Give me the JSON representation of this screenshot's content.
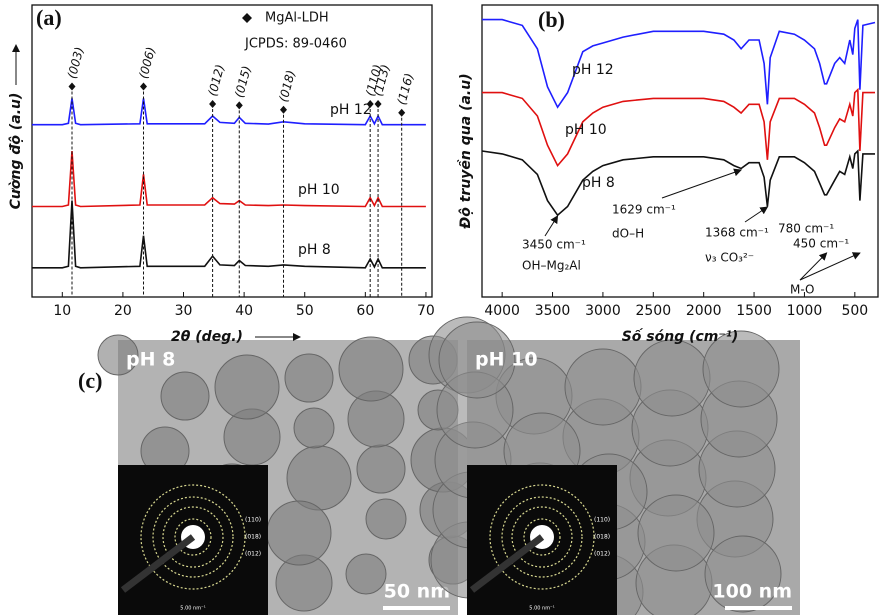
{
  "chart_data": [
    {
      "type": "line",
      "panel": "(a)",
      "xlabel": "2θ (deg.)",
      "ylabel": "Cường độ (a.u)",
      "legend_title": "MgAl-LDH",
      "reference": "JCPDS: 89-0460",
      "xlim": [
        5,
        71
      ],
      "xticks": [
        10,
        20,
        30,
        40,
        50,
        60,
        70
      ],
      "ylim": [
        0,
        100
      ],
      "x": [
        5,
        10,
        11,
        11.6,
        12.2,
        13,
        22.8,
        23.4,
        24,
        33.5,
        34.8,
        36,
        38.4,
        39.2,
        40.2,
        44,
        46.5,
        50,
        60,
        60.8,
        61.5,
        62.1,
        62.8,
        70
      ],
      "series": [
        {
          "name": "pH 12",
          "color": "#1f1fff",
          "values": [
            59,
            59,
            59.5,
            68,
            59.5,
            59,
            59.3,
            68,
            59.3,
            59.3,
            62,
            59.8,
            59.5,
            61.5,
            59.5,
            59.2,
            60,
            59.3,
            59,
            62,
            59.3,
            62,
            59,
            59
          ]
        },
        {
          "name": "pH 10",
          "color": "#e01010",
          "values": [
            31,
            31,
            31.5,
            50,
            31.5,
            31,
            31.5,
            42,
            31.5,
            31.5,
            34,
            32,
            31.8,
            33,
            31.5,
            31.3,
            31.5,
            31.3,
            31,
            34,
            31.3,
            34,
            31,
            31
          ]
        },
        {
          "name": "pH 8",
          "color": "#111111",
          "values": [
            10,
            10,
            10.5,
            33,
            10.5,
            10,
            10.5,
            21,
            10.5,
            10.5,
            14,
            11,
            10.8,
            12.5,
            10.8,
            10.5,
            11,
            10.5,
            10,
            13,
            10.3,
            13,
            10,
            10
          ]
        }
      ],
      "reflections": [
        {
          "x": 11.6,
          "label": "(003)"
        },
        {
          "x": 23.4,
          "label": "(006)"
        },
        {
          "x": 34.8,
          "label": "(012)"
        },
        {
          "x": 39.2,
          "label": "(015)"
        },
        {
          "x": 46.5,
          "label": "(018)"
        },
        {
          "x": 60.8,
          "label": "(110)"
        },
        {
          "x": 62.1,
          "label": "(113)"
        },
        {
          "x": 66,
          "label": "(116)"
        }
      ]
    },
    {
      "type": "line",
      "panel": "(b)",
      "xlabel": "Số sóng (cm⁻¹)",
      "ylabel": "Độ truyền qua (a.u)",
      "xlim": [
        4200,
        270
      ],
      "xticks": [
        4000,
        3500,
        3000,
        2500,
        2000,
        1500,
        1000,
        500
      ],
      "ylim": [
        0,
        100
      ],
      "x": [
        4200,
        4000,
        3800,
        3650,
        3550,
        3450,
        3350,
        3200,
        3100,
        3000,
        2800,
        2500,
        2000,
        1800,
        1700,
        1629,
        1550,
        1450,
        1400,
        1368,
        1340,
        1250,
        1100,
        1000,
        900,
        850,
        800,
        780,
        700,
        650,
        600,
        550,
        520,
        500,
        470,
        450,
        420,
        300
      ],
      "series": [
        {
          "name": "pH 12",
          "color": "#1f1fff",
          "values": [
            95,
            95,
            93,
            85,
            72,
            65,
            70,
            84,
            86,
            87,
            89,
            91,
            91,
            90,
            88,
            85,
            88,
            88,
            80,
            66,
            82,
            91,
            90,
            88,
            85,
            80,
            73,
            73,
            80,
            82,
            80,
            88,
            83,
            92,
            95,
            71,
            93,
            94
          ]
        },
        {
          "name": "pH 10",
          "color": "#e01010",
          "values": [
            70,
            70,
            68,
            62,
            52,
            45,
            49,
            60,
            63,
            65,
            67,
            68,
            68,
            67,
            65,
            63,
            66,
            66,
            60,
            47,
            60,
            68,
            68,
            66,
            63,
            58,
            52,
            52,
            58,
            61,
            60,
            66,
            62,
            70,
            71,
            50,
            70,
            70
          ]
        },
        {
          "name": "pH 8",
          "color": "#111111",
          "values": [
            50,
            49,
            47,
            42,
            33,
            28,
            31,
            40,
            43,
            45,
            47,
            48,
            48,
            47,
            45,
            44,
            46,
            46,
            41,
            31,
            40,
            48,
            48,
            46,
            43,
            39,
            35,
            35,
            40,
            43,
            42,
            48,
            44,
            49,
            50,
            33,
            49,
            49
          ]
        }
      ],
      "annotations": [
        {
          "x": 3450,
          "label": "3450 cm⁻¹",
          "note": "OH–Mg₂Al"
        },
        {
          "x": 1629,
          "label": "1629 cm⁻¹",
          "note": "dO–H"
        },
        {
          "x": 1368,
          "label": "1368 cm⁻¹",
          "note": "ν₃ CO₃²⁻"
        },
        {
          "x": 780,
          "label": "780 cm⁻¹"
        },
        {
          "x": 450,
          "label": "450 cm⁻¹"
        },
        {
          "label": "M-O"
        }
      ]
    }
  ],
  "panel_c": {
    "label": "(c)",
    "images": [
      {
        "label": "pH 8",
        "scale_bar": "50 nm",
        "inset_labels": [
          "(110)",
          "(018)",
          "(012)"
        ],
        "inset_scale": "5.00 nm⁻¹"
      },
      {
        "label": "pH 10",
        "scale_bar": "100 nm",
        "inset_labels": [
          "(110)",
          "(018)",
          "(012)"
        ],
        "inset_scale": "5.00 nm⁻¹"
      }
    ]
  }
}
